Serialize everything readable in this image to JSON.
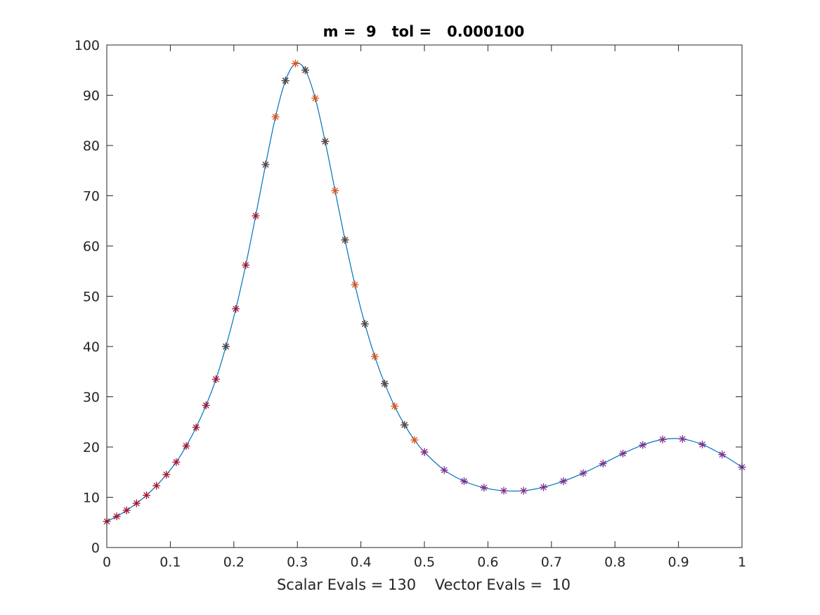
{
  "chart_data": {
    "type": "line",
    "title": "m =  9   tol =   0.000100",
    "xlabel": "Scalar Evals = 130    Vector Evals =  10",
    "ylabel": "",
    "xlim": [
      0,
      1
    ],
    "ylim": [
      0,
      100
    ],
    "xticks": [
      "0",
      "0.1",
      "0.2",
      "0.3",
      "0.4",
      "0.5",
      "0.6",
      "0.7",
      "0.8",
      "0.9",
      "1"
    ],
    "yticks": [
      "0",
      "10",
      "20",
      "30",
      "40",
      "50",
      "60",
      "70",
      "80",
      "90",
      "100"
    ],
    "grid": false,
    "legend": "none",
    "curve": {
      "color": "#0072bd",
      "x": [
        0,
        0.015625,
        0.03125,
        0.046875,
        0.0625,
        0.078125,
        0.09375,
        0.109375,
        0.125,
        0.140625,
        0.15625,
        0.171875,
        0.1875,
        0.203125,
        0.21875,
        0.234375,
        0.25,
        0.265625,
        0.28125,
        0.296875,
        0.3125,
        0.328125,
        0.34375,
        0.359375,
        0.375,
        0.390625,
        0.40625,
        0.421875,
        0.4375,
        0.453125,
        0.46875,
        0.484375,
        0.5,
        0.53125,
        0.5625,
        0.59375,
        0.625,
        0.65625,
        0.6875,
        0.71875,
        0.75,
        0.78125,
        0.8125,
        0.84375,
        0.875,
        0.90625,
        0.9375,
        0.96875,
        1
      ],
      "y": [
        5.2,
        6.2,
        7.4,
        8.8,
        10.4,
        12.3,
        14.5,
        17.0,
        20.2,
        23.9,
        28.3,
        33.5,
        40.0,
        47.5,
        56.2,
        66.0,
        76.2,
        85.7,
        92.9,
        96.3,
        95.0,
        89.4,
        80.8,
        71.0,
        61.2,
        52.3,
        44.5,
        38.0,
        32.6,
        28.1,
        24.4,
        21.4,
        19.0,
        15.4,
        13.2,
        11.9,
        11.3,
        11.3,
        12.0,
        13.2,
        14.8,
        16.7,
        18.7,
        20.4,
        21.5,
        21.6,
        20.5,
        18.5,
        16.0
      ]
    },
    "markers": {
      "symbol": "*",
      "groups": [
        {
          "color": "#a2142f",
          "x": [
            0,
            0.015625,
            0.03125,
            0.046875,
            0.0625,
            0.078125,
            0.09375,
            0.109375,
            0.125,
            0.140625,
            0.15625,
            0.171875,
            0.1875,
            0.203125,
            0.21875,
            0.234375,
            0.25,
            0.28125,
            0.3125,
            0.34375,
            0.375,
            0.40625,
            0.4375,
            0.46875,
            0.5
          ],
          "y": [
            5.2,
            6.2,
            7.4,
            8.8,
            10.4,
            12.3,
            14.5,
            17.0,
            20.2,
            23.9,
            28.3,
            33.5,
            40.0,
            47.5,
            56.2,
            66.0,
            76.2,
            92.9,
            95.0,
            80.8,
            61.2,
            44.5,
            32.6,
            24.4,
            19.0
          ]
        },
        {
          "color": "#d95319",
          "x": [
            0.265625,
            0.28125,
            0.296875,
            0.3125,
            0.328125,
            0.34375,
            0.359375,
            0.375,
            0.390625,
            0.40625,
            0.421875,
            0.4375,
            0.453125,
            0.46875,
            0.484375
          ],
          "y": [
            85.7,
            92.9,
            96.3,
            95.0,
            89.4,
            80.8,
            71.0,
            61.2,
            52.3,
            44.5,
            38.0,
            32.6,
            28.1,
            24.4,
            21.4
          ]
        },
        {
          "color": "#4d4d4d",
          "x": [
            0.1875,
            0.25,
            0.28125,
            0.3125,
            0.34375,
            0.375,
            0.40625,
            0.4375,
            0.46875
          ],
          "y": [
            40.0,
            76.2,
            92.9,
            95.0,
            80.8,
            61.2,
            44.5,
            32.6,
            24.4
          ]
        },
        {
          "color": "#7e2f8e",
          "x": [
            0.5,
            0.53125,
            0.5625,
            0.59375,
            0.625,
            0.65625,
            0.6875,
            0.71875,
            0.75,
            0.78125,
            0.8125,
            0.84375,
            0.875,
            0.90625,
            0.9375,
            0.96875,
            1
          ],
          "y": [
            19.0,
            15.4,
            13.2,
            11.9,
            11.3,
            11.3,
            12.0,
            13.2,
            14.8,
            16.7,
            18.7,
            20.4,
            21.5,
            21.6,
            20.5,
            18.5,
            16.0
          ]
        }
      ]
    }
  }
}
